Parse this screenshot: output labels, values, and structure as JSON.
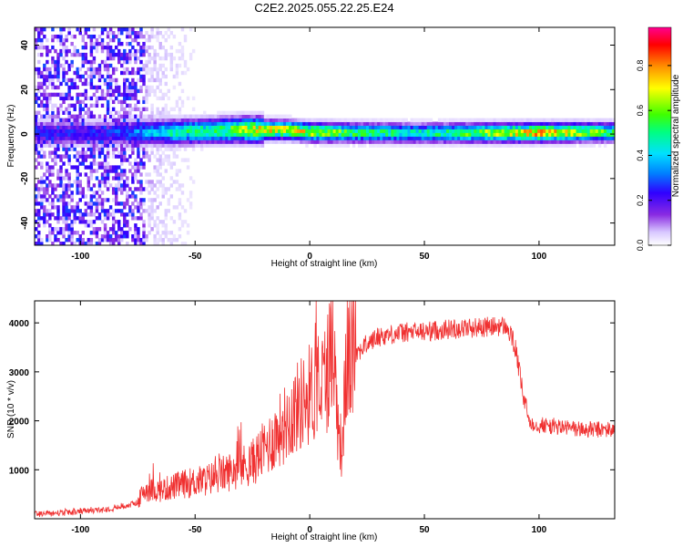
{
  "title": "C2E2.2025.055.22.25.E24",
  "chart_data": [
    {
      "type": "heatmap",
      "xlabel": "Height of straight line (km)",
      "ylabel": "Frequency (Hz)",
      "xlim": [
        -120,
        133
      ],
      "ylim": [
        -50,
        48
      ],
      "x_ticks": [
        -100,
        -50,
        0,
        50,
        100
      ],
      "y_ticks": [
        -40,
        -20,
        0,
        20,
        40
      ],
      "colorbar": {
        "label": "Normalized spectral amplitude",
        "range": [
          0,
          0.97
        ],
        "ticks": [
          0.0,
          0.2,
          0.4,
          0.6,
          0.8
        ],
        "colormap": [
          "#ffffff",
          "#d8c8ff",
          "#8a2be2",
          "#3000ff",
          "#0080ff",
          "#00e0ff",
          "#00ff80",
          "#40ff00",
          "#ffff00",
          "#ff9000",
          "#ff0000",
          "#ff0090"
        ]
      },
      "band": {
        "center_hz": [
          {
            "x": -90,
            "f": 0.5
          },
          {
            "x": -60,
            "f": 1.0
          },
          {
            "x": -30,
            "f": 2.0
          },
          {
            "x": -10,
            "f": 2.0
          },
          {
            "x": 0,
            "f": 1.0
          },
          {
            "x": 50,
            "f": 0.5
          },
          {
            "x": 133,
            "f": 1.0
          }
        ],
        "peak_amplitude_by_height": [
          {
            "x": -90,
            "a": 0.3
          },
          {
            "x": -75,
            "a": 0.4
          },
          {
            "x": -60,
            "a": 0.55
          },
          {
            "x": -40,
            "a": 0.6
          },
          {
            "x": -20,
            "a": 0.8
          },
          {
            "x": 0,
            "a": 0.75
          },
          {
            "x": 25,
            "a": 0.6
          },
          {
            "x": 50,
            "a": 0.55
          },
          {
            "x": 85,
            "a": 0.75
          },
          {
            "x": 100,
            "a": 0.85
          },
          {
            "x": 133,
            "a": 0.6
          }
        ],
        "noise_region_below_km": -72
      }
    },
    {
      "type": "line",
      "xlabel": "Height of straight line (km)",
      "ylabel": "SNR (10 * v/v)",
      "xlim": [
        -120,
        133
      ],
      "ylim": [
        0,
        4450
      ],
      "x_ticks": [
        -100,
        -50,
        0,
        50,
        100
      ],
      "y_ticks": [
        1000,
        2000,
        3000,
        4000
      ],
      "color": "#f03030",
      "series": [
        {
          "x": [
            -120,
            -110,
            -100,
            -90,
            -80,
            -75,
            -72,
            -65,
            -55,
            -45,
            -35,
            -25,
            -18,
            -12,
            -5,
            0,
            5,
            8,
            10,
            12,
            14,
            16,
            20,
            25,
            30,
            40,
            50,
            60,
            70,
            80,
            85,
            88,
            90,
            93,
            96,
            100,
            110,
            120,
            133
          ],
          "values": [
            100,
            110,
            140,
            180,
            260,
            330,
            560,
            560,
            680,
            760,
            920,
            1100,
            1450,
            1800,
            2200,
            2450,
            2600,
            2900,
            3650,
            2000,
            1300,
            3000,
            3350,
            3550,
            3700,
            3780,
            3800,
            3850,
            3880,
            3900,
            3920,
            3700,
            3400,
            2500,
            1950,
            1900,
            1850,
            1800,
            1800
          ]
        }
      ]
    }
  ]
}
